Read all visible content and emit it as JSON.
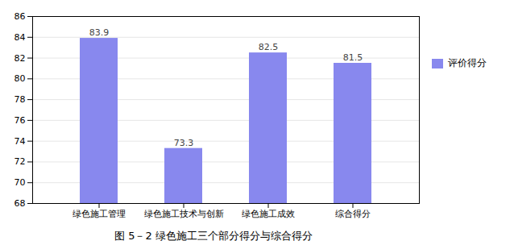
{
  "chart_data": {
    "type": "bar",
    "caption": "图 5－2 绿色施工三个部分得分与综合得分",
    "categories": [
      "绿色施工管理",
      "绿色施工技术与创新",
      "绿色施工成效",
      "综合得分"
    ],
    "series": [
      {
        "name": "评价得分",
        "color": "#8888ee",
        "values": [
          83.9,
          73.3,
          82.5,
          81.5
        ]
      }
    ],
    "ylim": [
      68,
      86
    ],
    "yticks": [
      68,
      70,
      72,
      74,
      76,
      78,
      80,
      82,
      84,
      86
    ],
    "grid": true,
    "legend": "right",
    "data_labels": true
  }
}
